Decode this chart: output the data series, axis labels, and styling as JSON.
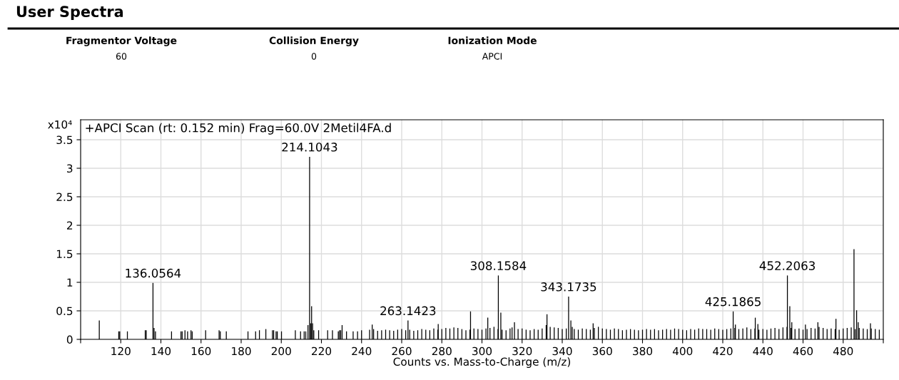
{
  "chart_data": {
    "type": "bar",
    "title": "User Spectra",
    "subtitle": "+APCI Scan (rt: 0.152 min) Frag=60.0V 2Metil4FA.d",
    "xlabel": "Counts vs. Mass-to-Charge (m/z)",
    "ylabel": "x10⁴",
    "annotations": [
      "Fragmentor Voltage",
      "60",
      "Collision Energy",
      "0",
      "Ionization Mode",
      "APCI",
      {
        "text": "136.0564",
        "x": 136.0564,
        "y": 0.99
      },
      {
        "text": "214.1043",
        "x": 214.1043,
        "y": 3.2
      },
      {
        "text": "263.1423",
        "x": 263.1423,
        "y": 0.33
      },
      {
        "text": "308.1584",
        "x": 308.1584,
        "y": 1.12
      },
      {
        "text": "343.1735",
        "x": 343.1735,
        "y": 0.75
      },
      {
        "text": "425.1865",
        "x": 425.1865,
        "y": 0.49
      },
      {
        "text": "452.2063",
        "x": 452.2063,
        "y": 1.12
      }
    ],
    "xlim": [
      100,
      500
    ],
    "xticks": [
      {
        "value": 100,
        "label": null
      },
      120,
      140,
      160,
      180,
      200,
      220,
      240,
      260,
      280,
      300,
      320,
      340,
      360,
      380,
      400,
      420,
      440,
      460,
      480,
      {
        "value": 500,
        "label": null
      }
    ],
    "ylim": [
      0,
      3.85
    ],
    "yticks": [
      0,
      0.5,
      1,
      1.5,
      2,
      2.5,
      3,
      3.5
    ],
    "grid": true,
    "series": [
      {
        "color": "#000000",
        "x": [
          109.3,
          119,
          119.5,
          123.3,
          132.2,
          132.7,
          136.0564,
          136.6,
          137.3,
          145.3,
          150,
          150.6,
          152,
          153.3,
          155,
          155.6,
          162.3,
          169,
          169.6,
          172.6,
          183.4,
          187.2,
          189.1,
          192.3,
          195.6,
          196.2,
          197.4,
          198,
          200.1,
          207,
          209.6,
          211.4,
          212.2,
          213.3,
          214.1043,
          214.6,
          215.1,
          215.6,
          216.2,
          218.6,
          223.1,
          225.5,
          228.4,
          229,
          229.6,
          230.3,
          232.5,
          235.8,
          238,
          240,
          244,
          245.3,
          246,
          248,
          250,
          252,
          254,
          256,
          258,
          260,
          262,
          263.1423,
          264,
          266,
          268,
          270,
          272,
          274,
          276,
          278,
          278.2,
          280,
          282,
          284,
          286,
          288,
          290,
          292,
          294,
          294.3,
          296,
          298,
          300,
          302,
          302.9,
          304,
          306,
          308,
          308.1584,
          309.4,
          310,
          312,
          314,
          315,
          316.2,
          318,
          320,
          322,
          324,
          326,
          328,
          330,
          332,
          332.4,
          334,
          336,
          338,
          340,
          342,
          343.1735,
          344.3,
          345,
          346,
          348,
          350,
          352,
          354,
          355.4,
          356,
          358,
          360,
          362,
          364,
          366,
          368,
          370,
          372,
          374,
          376,
          378,
          380,
          382,
          384,
          386,
          388,
          390,
          392,
          394,
          396,
          398,
          400,
          402,
          404,
          406,
          408,
          410,
          412,
          414,
          416,
          418,
          420,
          422,
          424,
          425.1865,
          426,
          426.3,
          428,
          430,
          432,
          434,
          436,
          436.2,
          437.5,
          438,
          440,
          442,
          444,
          446,
          448,
          450,
          452,
          452.2063,
          453.4,
          454,
          454.4,
          456,
          458,
          460,
          461.2,
          462,
          464,
          466,
          467.4,
          468,
          470,
          472,
          474,
          476,
          476.4,
          478,
          480,
          482,
          484,
          485.4,
          486,
          486.7,
          487.5,
          488,
          490,
          492,
          493.6,
          494,
          496,
          498
        ],
        "values": [
          0.33,
          0.14,
          0.14,
          0.14,
          0.16,
          0.16,
          0.99,
          0.2,
          0.14,
          0.14,
          0.14,
          0.14,
          0.16,
          0.14,
          0.16,
          0.14,
          0.16,
          0.16,
          0.14,
          0.14,
          0.14,
          0.14,
          0.16,
          0.18,
          0.16,
          0.16,
          0.14,
          0.14,
          0.14,
          0.16,
          0.14,
          0.14,
          0.14,
          0.25,
          3.2,
          0.28,
          0.58,
          0.28,
          0.16,
          0.16,
          0.16,
          0.16,
          0.14,
          0.16,
          0.16,
          0.25,
          0.14,
          0.14,
          0.14,
          0.16,
          0.17,
          0.26,
          0.18,
          0.15,
          0.16,
          0.17,
          0.16,
          0.15,
          0.17,
          0.18,
          0.16,
          0.33,
          0.17,
          0.15,
          0.16,
          0.18,
          0.17,
          0.16,
          0.19,
          0.17,
          0.27,
          0.18,
          0.2,
          0.19,
          0.21,
          0.2,
          0.18,
          0.16,
          0.17,
          0.49,
          0.19,
          0.18,
          0.17,
          0.19,
          0.38,
          0.2,
          0.22,
          0.18,
          1.12,
          0.47,
          0.17,
          0.16,
          0.19,
          0.21,
          0.3,
          0.18,
          0.19,
          0.17,
          0.16,
          0.18,
          0.17,
          0.19,
          0.25,
          0.44,
          0.22,
          0.21,
          0.2,
          0.18,
          0.19,
          0.75,
          0.33,
          0.22,
          0.18,
          0.17,
          0.19,
          0.18,
          0.17,
          0.28,
          0.2,
          0.22,
          0.19,
          0.18,
          0.17,
          0.19,
          0.18,
          0.16,
          0.17,
          0.18,
          0.17,
          0.16,
          0.17,
          0.18,
          0.17,
          0.18,
          0.16,
          0.17,
          0.18,
          0.17,
          0.19,
          0.18,
          0.17,
          0.16,
          0.18,
          0.17,
          0.19,
          0.18,
          0.18,
          0.17,
          0.19,
          0.18,
          0.17,
          0.18,
          0.19,
          0.49,
          0.2,
          0.26,
          0.18,
          0.19,
          0.21,
          0.18,
          0.19,
          0.38,
          0.27,
          0.17,
          0.18,
          0.17,
          0.19,
          0.2,
          0.18,
          0.21,
          0.22,
          1.12,
          0.58,
          0.2,
          0.3,
          0.18,
          0.19,
          0.17,
          0.26,
          0.18,
          0.2,
          0.19,
          0.3,
          0.22,
          0.2,
          0.18,
          0.19,
          0.18,
          0.36,
          0.17,
          0.19,
          0.2,
          0.21,
          1.58,
          0.18,
          0.51,
          0.3,
          0.2,
          0.19,
          0.18,
          0.28,
          0.19,
          0.18,
          0.17
        ]
      }
    ]
  }
}
